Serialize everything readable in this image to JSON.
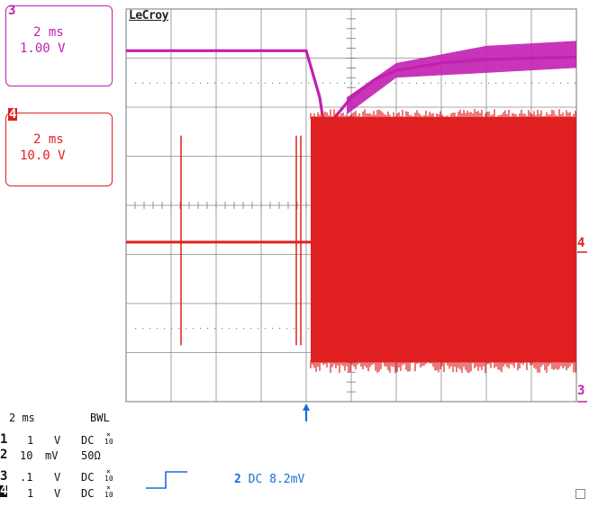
{
  "brand": "LeCroy",
  "channel_boxes": [
    {
      "num": "3",
      "timebase": "2 ms",
      "scale": "1.00 V",
      "color": "#c21fb0"
    },
    {
      "num": "4",
      "timebase": "2 ms",
      "scale": "10.0 V",
      "color": "#e02020"
    }
  ],
  "timebase": "2 ms",
  "bwl": "BWL",
  "channels": [
    {
      "num": "1",
      "value": "1",
      "unit": "V",
      "coupling": "DC",
      "probe_x": "×",
      "probe_n": "10"
    },
    {
      "num": "2",
      "value": "10",
      "unit": "mV",
      "coupling": "50Ω",
      "probe_x": "",
      "probe_n": ""
    },
    {
      "num": "3",
      "value": ".1",
      "unit": "V",
      "coupling": "DC",
      "probe_x": "×",
      "probe_n": "10"
    },
    {
      "num": "4",
      "value": "1",
      "unit": "V",
      "coupling": "DC",
      "probe_x": "×",
      "probe_n": "10"
    }
  ],
  "trigger": {
    "channel": "2",
    "coupling": "DC",
    "level": "8.2mV",
    "color": "#1a6fd6"
  },
  "markers": {
    "right_ch4": "4",
    "right_ch3": "3"
  },
  "chart_data": {
    "type": "line",
    "grid": true,
    "x_divisions": 10,
    "y_divisions": 8,
    "series": [
      {
        "channel": "3",
        "color": "#c21fb0",
        "points": [
          [
            0.0,
            7.15
          ],
          [
            4.0,
            7.15
          ],
          [
            4.3,
            6.2
          ],
          [
            4.4,
            5.6
          ],
          [
            4.6,
            5.75
          ],
          [
            5.0,
            6.2
          ],
          [
            5.5,
            6.55
          ],
          [
            6.0,
            6.75
          ],
          [
            7.0,
            6.9
          ],
          [
            8.0,
            6.97
          ],
          [
            9.0,
            7.0
          ],
          [
            10.0,
            7.02
          ]
        ],
        "noise_band": {
          "x_from": 4.9,
          "upper": 7.35,
          "lower": 6.6
        }
      },
      {
        "channel": "4",
        "color": "#e02020",
        "baseline": 3.25,
        "spikes": [
          {
            "x": 1.22,
            "top": 5.42,
            "bottom": 1.15
          },
          {
            "x": 3.78,
            "top": 5.42,
            "bottom": 1.15
          },
          {
            "x": 3.88,
            "top": 5.42,
            "bottom": 1.15
          }
        ],
        "burst": {
          "x_from": 4.1,
          "x_to": 10.0,
          "top": 5.8,
          "bottom": 0.8
        }
      }
    ],
    "trigger_marker_x": 4.0
  }
}
